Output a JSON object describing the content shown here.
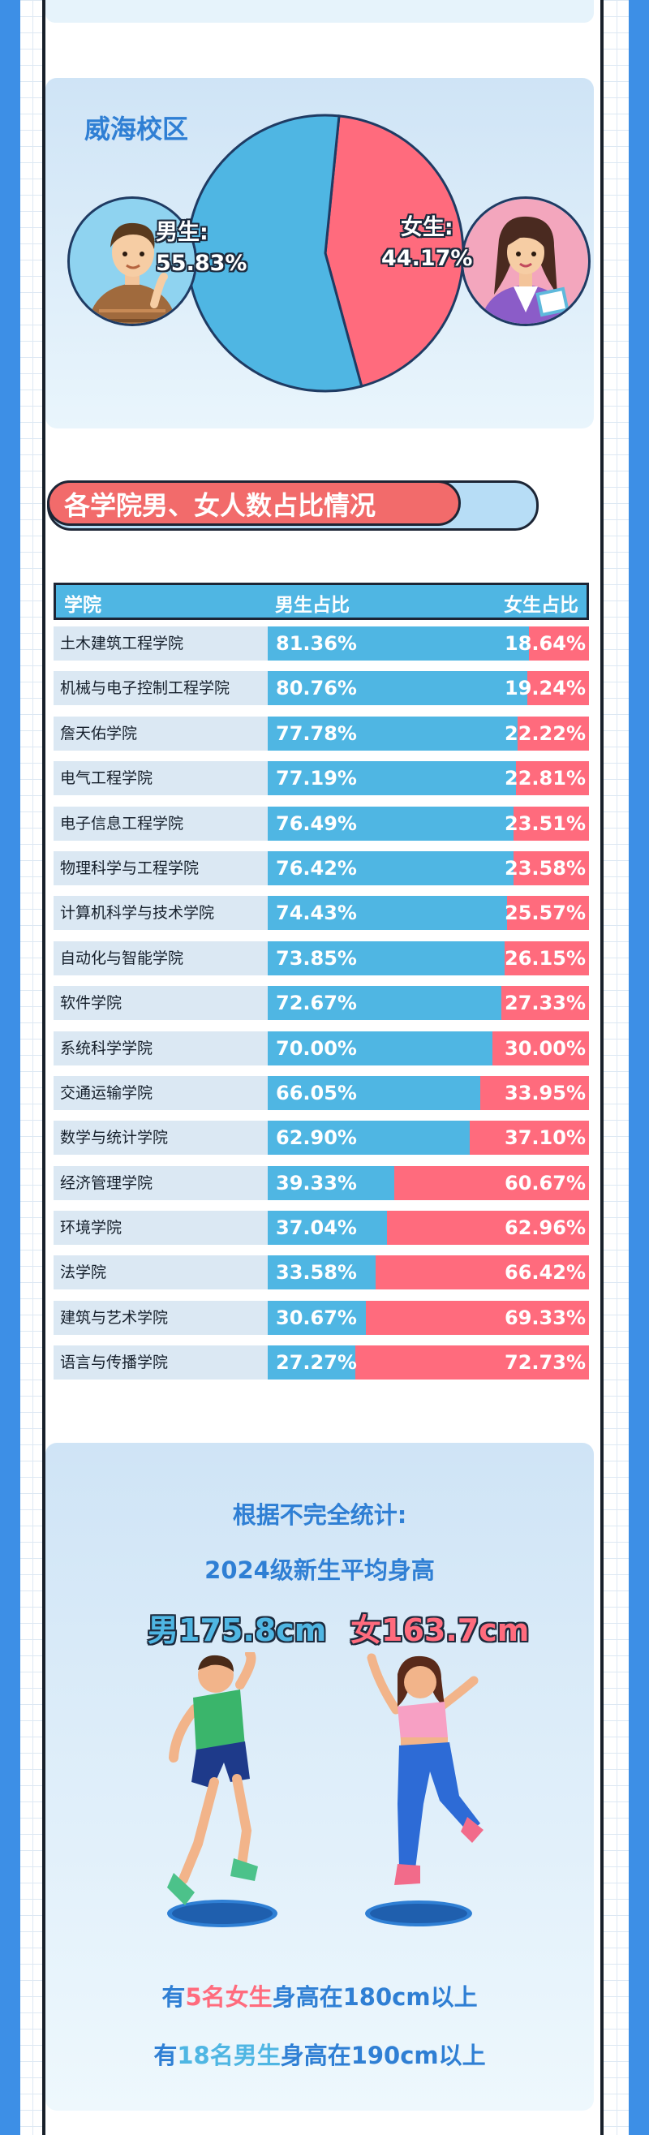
{
  "colors": {
    "male": "#4fb6e3",
    "female": "#ff6b7d",
    "accent_blue": "#2f7fd4",
    "side_blue": "#3d8fe6",
    "dark": "#1c2535"
  },
  "weihai": {
    "title": "威海校区",
    "male_label": "男生:",
    "male_pct": "55.83%",
    "female_label": "女生:",
    "female_pct": "44.17%",
    "male_value": 55.83,
    "female_value": 44.17,
    "male_icon": "male-avatar-icon",
    "female_icon": "female-avatar-icon"
  },
  "section": {
    "title": "各学院男、女人数占比情况"
  },
  "table": {
    "headers": {
      "college": "学院",
      "male": "男生占比",
      "female": "女生占比"
    },
    "rows": [
      {
        "name": "土木建筑工程学院",
        "male": 81.36,
        "male_text": "81.36%",
        "female_text": "18.64%"
      },
      {
        "name": "机械与电子控制工程学院",
        "male": 80.76,
        "male_text": "80.76%",
        "female_text": "19.24%"
      },
      {
        "name": "詹天佑学院",
        "male": 77.78,
        "male_text": "77.78%",
        "female_text": "22.22%"
      },
      {
        "name": "电气工程学院",
        "male": 77.19,
        "male_text": "77.19%",
        "female_text": "22.81%"
      },
      {
        "name": "电子信息工程学院",
        "male": 76.49,
        "male_text": "76.49%",
        "female_text": "23.51%"
      },
      {
        "name": "物理科学与工程学院",
        "male": 76.42,
        "male_text": "76.42%",
        "female_text": "23.58%"
      },
      {
        "name": "计算机科学与技术学院",
        "male": 74.43,
        "male_text": "74.43%",
        "female_text": "25.57%"
      },
      {
        "name": "自动化与智能学院",
        "male": 73.85,
        "male_text": "73.85%",
        "female_text": "26.15%"
      },
      {
        "name": "软件学院",
        "male": 72.67,
        "male_text": "72.67%",
        "female_text": "27.33%"
      },
      {
        "name": "系统科学学院",
        "male": 70.0,
        "male_text": "70.00%",
        "female_text": "30.00%"
      },
      {
        "name": "交通运输学院",
        "male": 66.05,
        "male_text": "66.05%",
        "female_text": "33.95%"
      },
      {
        "name": "数学与统计学院",
        "male": 62.9,
        "male_text": "62.90%",
        "female_text": "37.10%"
      },
      {
        "name": "经济管理学院",
        "male": 39.33,
        "male_text": "39.33%",
        "female_text": "60.67%"
      },
      {
        "name": "环境学院",
        "male": 37.04,
        "male_text": "37.04%",
        "female_text": "62.96%"
      },
      {
        "name": "法学院",
        "male": 33.58,
        "male_text": "33.58%",
        "female_text": "66.42%"
      },
      {
        "name": "建筑与艺术学院",
        "male": 30.67,
        "male_text": "30.67%",
        "female_text": "69.33%"
      },
      {
        "name": "语言与传播学院",
        "male": 27.27,
        "male_text": "27.27%",
        "female_text": "72.73%"
      }
    ]
  },
  "heights": {
    "line1": "根据不完全统计:",
    "line2": "2024级新生平均身高",
    "male_avg": "男175.8cm",
    "female_avg": "女163.7cm",
    "male_icon": "jumping-boy-icon",
    "female_icon": "jumping-girl-icon",
    "stat1": {
      "pre": "有",
      "hl": "5名女生",
      "post": "身高在180cm以上"
    },
    "stat2": {
      "pre": "有",
      "hl": "18名男生",
      "post": "身高在190cm以上"
    }
  }
}
